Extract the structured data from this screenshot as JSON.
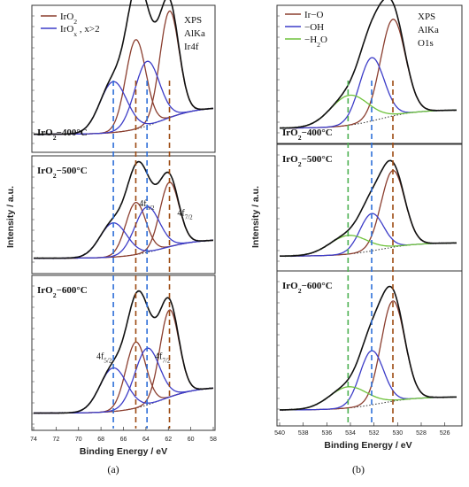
{
  "colors": {
    "ir_o2": "#8B3E2F",
    "irox": "#3D3DC8",
    "envelope": "#111111",
    "background": "#333333",
    "water": "#6EC23B",
    "vline_blue": "#2E6FD8",
    "vline_brown": "#9C4A12",
    "vline_green": "#4CAF50"
  },
  "caption_a": "(a)",
  "caption_b": "(b)",
  "chart_data": [
    {
      "type": "line",
      "panel": "a",
      "title_lines": [
        "XPS",
        "AlKa",
        "Ir4f"
      ],
      "xlabel": "Binding Energy / eV",
      "ylabel": "Intensity / a.u.",
      "xlim": [
        74,
        58
      ],
      "x_ticks": [
        "74",
        "72",
        "70",
        "68",
        "66",
        "64",
        "62",
        "60",
        "58"
      ],
      "legend": [
        {
          "name": "IrO",
          "sub": "2",
          "sup": "",
          "tail": "",
          "color_key": "ir_o2"
        },
        {
          "name": "IrO",
          "sub": "x",
          "sup": "",
          "tail": " , x>2",
          "color_key": "irox"
        }
      ],
      "vlines": [
        {
          "x": 66.9,
          "color_key": "vline_blue"
        },
        {
          "x": 64.9,
          "color_key": "vline_brown"
        },
        {
          "x": 63.9,
          "color_key": "vline_blue"
        },
        {
          "x": 61.9,
          "color_key": "vline_brown"
        }
      ],
      "subpanels": [
        {
          "label_pre": "IrO",
          "label_sub": "2",
          "label_post": "−400°C",
          "bg": [
            0.22,
            0.06
          ],
          "bg_center": 62.6,
          "components": [
            {
              "color_key": "ir_o2",
              "center": 61.9,
              "amp": 0.86,
              "width": 0.85
            },
            {
              "color_key": "ir_o2",
              "center": 64.9,
              "amp": 0.72,
              "width": 0.9
            },
            {
              "color_key": "irox",
              "center": 63.9,
              "amp": 0.52,
              "width": 1.1
            },
            {
              "color_key": "irox",
              "center": 66.9,
              "amp": 0.41,
              "width": 1.2
            }
          ],
          "peak_labels": []
        },
        {
          "label_pre": "IrO",
          "label_sub": "2",
          "label_post": "−500°C",
          "bg": [
            0.2,
            0.05
          ],
          "bg_center": 62.6,
          "components": [
            {
              "color_key": "ir_o2",
              "center": 61.9,
              "amp": 0.68,
              "width": 0.85
            },
            {
              "color_key": "ir_o2",
              "center": 64.9,
              "amp": 0.55,
              "width": 0.9
            },
            {
              "color_key": "irox",
              "center": 63.9,
              "amp": 0.48,
              "width": 1.1
            },
            {
              "color_key": "irox",
              "center": 66.9,
              "amp": 0.36,
              "width": 1.2
            }
          ],
          "peak_labels": [
            {
              "text": "4f",
              "sub": "5/2",
              "x": 64.6,
              "ylevel": 0.6
            },
            {
              "text": "4f",
              "sub": "7/2",
              "x": 61.2,
              "ylevel": 0.5
            }
          ]
        },
        {
          "label_pre": "IrO",
          "label_sub": "2",
          "label_post": "−600°C",
          "bg": [
            0.2,
            0.05
          ],
          "bg_center": 62.6,
          "components": [
            {
              "color_key": "ir_o2",
              "center": 61.9,
              "amp": 0.66,
              "width": 0.85
            },
            {
              "color_key": "ir_o2",
              "center": 64.9,
              "amp": 0.5,
              "width": 0.9
            },
            {
              "color_key": "irox",
              "center": 63.9,
              "amp": 0.43,
              "width": 1.1
            },
            {
              "color_key": "irox",
              "center": 66.9,
              "amp": 0.33,
              "width": 1.2
            }
          ],
          "peak_labels": [
            {
              "text": "4f",
              "sub": "5/2",
              "x": 68.4,
              "ylevel": 0.46
            },
            {
              "text": "4f",
              "sub": "7/2",
              "x": 63.2,
              "ylevel": 0.46
            }
          ]
        }
      ]
    },
    {
      "type": "line",
      "panel": "b",
      "title_lines": [
        "XPS",
        "AlKa",
        "O1s"
      ],
      "xlabel": "Binding Energy / eV",
      "ylabel": "Intensity / a.u.",
      "xlim": [
        540,
        525
      ],
      "x_ticks": [
        "540",
        "538",
        "536",
        "534",
        "532",
        "530",
        "528",
        "526"
      ],
      "legend": [
        {
          "name": "Ir−O",
          "sub": "",
          "sup": "",
          "tail": "",
          "color_key": "ir_o2"
        },
        {
          "name": "−OH",
          "sub": "",
          "sup": "",
          "tail": "",
          "color_key": "irox"
        },
        {
          "name": "−H",
          "sub": "2",
          "sup": "",
          "tail": "O",
          "color_key": "water"
        }
      ],
      "vlines": [
        {
          "x": 534.2,
          "color_key": "vline_green"
        },
        {
          "x": 532.2,
          "color_key": "vline_blue"
        },
        {
          "x": 530.4,
          "color_key": "vline_brown"
        }
      ],
      "subpanels": [
        {
          "label_pre": "IrO",
          "label_sub": "2",
          "label_post": "−400°C",
          "bg": [
            0.16,
            0.04
          ],
          "bg_center": 531.5,
          "components": [
            {
              "color_key": "ir_o2",
              "center": 530.4,
              "amp": 0.84,
              "width": 1.05
            },
            {
              "color_key": "irox",
              "center": 532.2,
              "amp": 0.55,
              "width": 1.05
            },
            {
              "color_key": "water",
              "center": 534.1,
              "amp": 0.26,
              "width": 1.6
            }
          ],
          "peak_labels": []
        },
        {
          "label_pre": "IrO",
          "label_sub": "2",
          "label_post": "−500°C",
          "bg": [
            0.13,
            0.04
          ],
          "bg_center": 531.5,
          "components": [
            {
              "color_key": "ir_o2",
              "center": 530.4,
              "amp": 0.74,
              "width": 1.0
            },
            {
              "color_key": "irox",
              "center": 532.2,
              "amp": 0.36,
              "width": 1.0
            },
            {
              "color_key": "water",
              "center": 534.2,
              "amp": 0.18,
              "width": 1.6
            }
          ],
          "peak_labels": []
        },
        {
          "label_pre": "IrO",
          "label_sub": "2",
          "label_post": "−600°C",
          "bg": [
            0.1,
            0.04
          ],
          "bg_center": 531.5,
          "components": [
            {
              "color_key": "ir_o2",
              "center": 530.4,
              "amp": 0.76,
              "width": 1.0
            },
            {
              "color_key": "irox",
              "center": 532.2,
              "amp": 0.41,
              "width": 1.0
            },
            {
              "color_key": "water",
              "center": 534.2,
              "amp": 0.16,
              "width": 1.6
            }
          ],
          "peak_labels": []
        }
      ]
    }
  ]
}
